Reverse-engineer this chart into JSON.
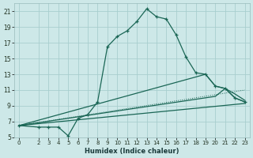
{
  "bg_color": "#cde8e8",
  "grid_color": "#a8cece",
  "line_color": "#1a6655",
  "xlabel": "Humidex (Indice chaleur)",
  "xlim": [
    -0.5,
    23.5
  ],
  "ylim": [
    5,
    22
  ],
  "xticks": [
    0,
    2,
    3,
    4,
    5,
    6,
    7,
    8,
    9,
    10,
    11,
    12,
    13,
    14,
    15,
    16,
    17,
    18,
    19,
    20,
    21,
    22,
    23
  ],
  "yticks": [
    5,
    7,
    9,
    11,
    13,
    15,
    17,
    19,
    21
  ],
  "main_x": [
    0,
    2,
    3,
    4,
    5,
    6,
    7,
    8,
    9,
    10,
    11,
    12,
    13,
    14,
    15,
    16,
    17,
    18,
    19,
    20,
    21,
    22,
    23
  ],
  "main_y": [
    6.5,
    6.3,
    6.3,
    6.3,
    5.2,
    7.4,
    7.9,
    9.5,
    16.5,
    17.8,
    18.5,
    19.7,
    21.3,
    20.3,
    20.0,
    18.0,
    15.2,
    13.2,
    13.0,
    11.5,
    11.2,
    10.0,
    9.5
  ],
  "fan_lines": [
    {
      "x": [
        0,
        23
      ],
      "y": [
        6.5,
        9.3
      ]
    },
    {
      "x": [
        0,
        20,
        21,
        22,
        23
      ],
      "y": [
        6.5,
        10.2,
        11.2,
        10.5,
        9.7
      ]
    },
    {
      "x": [
        0,
        19,
        20,
        21,
        22,
        23
      ],
      "y": [
        6.5,
        13.0,
        11.5,
        11.2,
        10.0,
        9.5
      ]
    }
  ]
}
